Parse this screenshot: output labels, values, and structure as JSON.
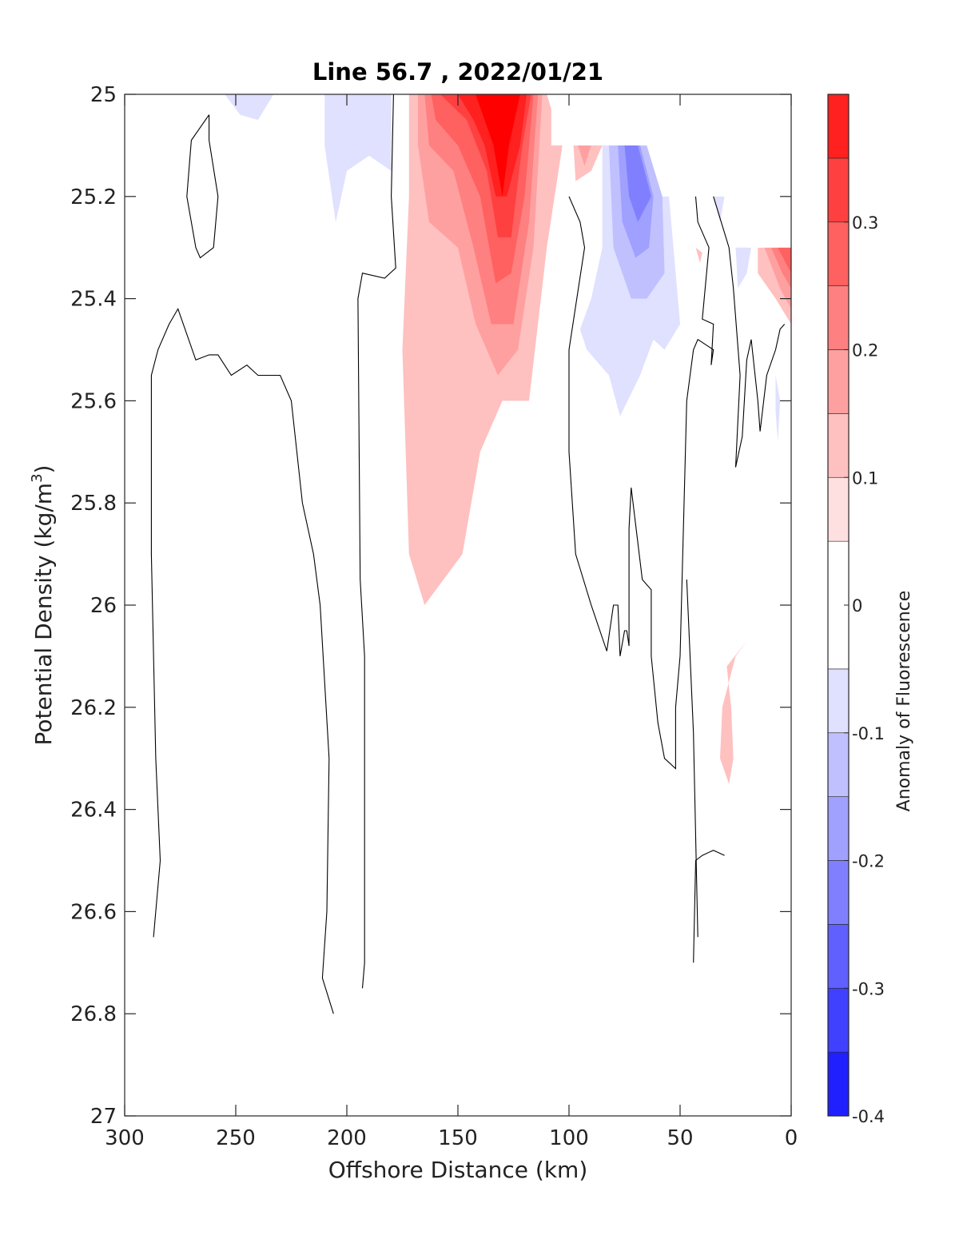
{
  "chart_data": {
    "type": "heatmap",
    "subtype": "filled-contour section",
    "title": "Line 56.7 , 2022/01/21",
    "xlabel": "Offshore Distance (km)",
    "ylabel_prefix": "Potential Density (kg/m",
    "ylabel_superscript": "3",
    "ylabel_suffix": ")",
    "xlim": [
      300,
      0
    ],
    "ylim": [
      25,
      27
    ],
    "x_reversed": true,
    "y_reversed": true,
    "xticks": [
      300,
      250,
      200,
      150,
      100,
      50,
      0
    ],
    "xtick_labels": [
      "300",
      "250",
      "200",
      "150",
      "100",
      "50",
      "0"
    ],
    "yticks": [
      25,
      25.2,
      25.4,
      25.6,
      25.8,
      26,
      26.2,
      26.4,
      26.6,
      26.8,
      27
    ],
    "ytick_labels": [
      "25",
      "25.2",
      "25.4",
      "25.6",
      "25.8",
      "26",
      "26.2",
      "26.4",
      "26.6",
      "26.8",
      "27"
    ],
    "colorbar": {
      "label": "Anomaly of Fluorescence",
      "min": -0.4,
      "max": 0.4,
      "levels": [
        -0.4,
        -0.35,
        -0.3,
        -0.25,
        -0.2,
        -0.15,
        -0.1,
        -0.05,
        0.05,
        0.1,
        0.15,
        0.2,
        0.25,
        0.3,
        0.35,
        0.4
      ],
      "colors": [
        "#0000ff",
        "#2020ff",
        "#4040ff",
        "#6060ff",
        "#8080ff",
        "#a0a0ff",
        "#c0c0ff",
        "#e0e0ff",
        "#ffffff",
        "#ffe0e0",
        "#ffc0c0",
        "#ffa0a0",
        "#ff8080",
        "#ff6060",
        "#ff4040",
        "#ff2020",
        "#ff0000"
      ],
      "ticks": [
        -0.4,
        -0.3,
        -0.2,
        -0.1,
        0,
        0.1,
        0.2,
        0.3
      ],
      "tick_labels": [
        "-0.4",
        "-0.3",
        "-0.2",
        "-0.1",
        "0",
        "0.1",
        "0.2",
        "0.3"
      ]
    },
    "filled_regions": [
      {
        "level": 0.1,
        "points": [
          [
            172,
            25.0
          ],
          [
            110,
            25.0
          ],
          [
            103,
            25.1
          ],
          [
            110,
            25.3
          ],
          [
            118,
            25.6
          ],
          [
            130,
            25.6
          ],
          [
            140,
            25.7
          ],
          [
            148,
            25.9
          ],
          [
            165,
            26.0
          ],
          [
            172,
            25.9
          ],
          [
            175,
            25.5
          ],
          [
            172,
            25.2
          ]
        ]
      },
      {
        "level": 0.15,
        "points": [
          [
            168,
            25.0
          ],
          [
            112,
            25.0
          ],
          [
            116,
            25.3
          ],
          [
            123,
            25.5
          ],
          [
            132,
            25.55
          ],
          [
            142,
            25.45
          ],
          [
            150,
            25.3
          ],
          [
            163,
            25.25
          ],
          [
            168,
            25.1
          ]
        ]
      },
      {
        "level": 0.2,
        "points": [
          [
            165,
            25.0
          ],
          [
            114,
            25.0
          ],
          [
            118,
            25.25
          ],
          [
            125,
            25.45
          ],
          [
            135,
            25.45
          ],
          [
            143,
            25.3
          ],
          [
            152,
            25.15
          ],
          [
            163,
            25.1
          ]
        ]
      },
      {
        "level": 0.25,
        "points": [
          [
            162,
            25.0
          ],
          [
            116,
            25.0
          ],
          [
            120,
            25.2
          ],
          [
            126,
            25.35
          ],
          [
            133,
            25.37
          ],
          [
            140,
            25.2
          ],
          [
            150,
            25.1
          ],
          [
            160,
            25.05
          ]
        ]
      },
      {
        "level": 0.3,
        "points": [
          [
            158,
            25.0
          ],
          [
            117,
            25.0
          ],
          [
            121,
            25.1
          ],
          [
            126,
            25.28
          ],
          [
            132,
            25.28
          ],
          [
            137,
            25.15
          ],
          [
            146,
            25.05
          ]
        ]
      },
      {
        "level": 0.35,
        "points": [
          [
            150,
            25.0
          ],
          [
            119,
            25.0
          ],
          [
            122,
            25.1
          ],
          [
            128,
            25.2
          ],
          [
            133,
            25.2
          ],
          [
            138,
            25.1
          ],
          [
            143,
            25.05
          ]
        ]
      },
      {
        "level": 0.4,
        "points": [
          [
            142,
            25.0
          ],
          [
            122,
            25.0
          ],
          [
            127,
            25.1
          ],
          [
            130,
            25.2
          ],
          [
            134,
            25.1
          ]
        ]
      },
      {
        "level": 0.1,
        "points": [
          [
            98,
            25.1
          ],
          [
            85,
            25.1
          ],
          [
            90,
            25.15
          ],
          [
            97,
            25.17
          ]
        ]
      },
      {
        "level": 0.15,
        "points": [
          [
            96,
            25.1
          ],
          [
            90,
            25.1
          ],
          [
            93,
            25.14
          ]
        ]
      },
      {
        "level": 0.1,
        "points": [
          [
            15,
            25.3
          ],
          [
            0,
            25.3
          ],
          [
            0,
            25.45
          ],
          [
            7,
            25.4
          ],
          [
            15,
            25.35
          ]
        ]
      },
      {
        "level": 0.15,
        "points": [
          [
            12,
            25.3
          ],
          [
            0,
            25.3
          ],
          [
            0,
            25.42
          ],
          [
            5,
            25.38
          ]
        ]
      },
      {
        "level": 0.2,
        "points": [
          [
            9,
            25.3
          ],
          [
            0,
            25.3
          ],
          [
            0,
            25.38
          ],
          [
            4,
            25.35
          ]
        ]
      },
      {
        "level": 0.25,
        "points": [
          [
            6,
            25.3
          ],
          [
            0,
            25.3
          ],
          [
            0,
            25.35
          ]
        ]
      },
      {
        "level": 0.1,
        "points": [
          [
            20,
            26.07
          ],
          [
            25,
            26.1
          ],
          [
            31,
            26.2
          ],
          [
            32,
            26.3
          ],
          [
            28,
            26.35
          ],
          [
            26,
            26.3
          ],
          [
            27,
            26.2
          ],
          [
            29,
            26.12
          ]
        ]
      },
      {
        "level": 0.1,
        "points": [
          [
            43,
            25.3
          ],
          [
            40,
            25.31
          ],
          [
            41,
            25.33
          ]
        ]
      },
      {
        "level": -0.1,
        "points": [
          [
            85,
            25.1
          ],
          [
            60,
            25.1
          ],
          [
            55,
            25.2
          ],
          [
            50,
            25.45
          ],
          [
            57,
            25.5
          ],
          [
            62,
            25.48
          ],
          [
            68,
            25.55
          ],
          [
            77,
            25.63
          ],
          [
            82,
            25.55
          ],
          [
            92,
            25.5
          ],
          [
            95,
            25.46
          ],
          [
            90,
            25.4
          ],
          [
            85,
            25.3
          ]
        ]
      },
      {
        "level": -0.15,
        "points": [
          [
            82,
            25.1
          ],
          [
            65,
            25.1
          ],
          [
            58,
            25.2
          ],
          [
            57,
            25.35
          ],
          [
            65,
            25.4
          ],
          [
            72,
            25.4
          ],
          [
            80,
            25.3
          ]
        ]
      },
      {
        "level": -0.2,
        "points": [
          [
            78,
            25.1
          ],
          [
            68,
            25.1
          ],
          [
            62,
            25.2
          ],
          [
            64,
            25.3
          ],
          [
            70,
            25.32
          ],
          [
            76,
            25.25
          ]
        ]
      },
      {
        "level": -0.25,
        "points": [
          [
            75,
            25.1
          ],
          [
            69,
            25.1
          ],
          [
            63,
            25.2
          ],
          [
            69,
            25.25
          ],
          [
            73,
            25.2
          ]
        ]
      },
      {
        "level": -0.1,
        "points": [
          [
            255,
            25.0
          ],
          [
            233,
            25.0
          ],
          [
            240,
            25.05
          ],
          [
            248,
            25.04
          ]
        ]
      },
      {
        "level": -0.1,
        "points": [
          [
            210,
            25.0
          ],
          [
            180,
            25.0
          ],
          [
            180,
            25.15
          ],
          [
            190,
            25.12
          ],
          [
            200,
            25.15
          ],
          [
            205,
            25.25
          ],
          [
            210,
            25.1
          ]
        ]
      },
      {
        "level": -0.1,
        "points": [
          [
            35,
            25.2
          ],
          [
            30,
            25.2
          ],
          [
            32,
            25.25
          ]
        ]
      },
      {
        "level": -0.1,
        "points": [
          [
            25,
            25.3
          ],
          [
            18,
            25.3
          ],
          [
            20,
            25.35
          ],
          [
            24,
            25.38
          ]
        ]
      },
      {
        "level": -0.1,
        "points": [
          [
            7,
            25.55
          ],
          [
            5,
            25.6
          ],
          [
            6,
            25.68
          ],
          [
            7,
            25.62
          ]
        ]
      }
    ],
    "masked_regions": [
      {
        "points": [
          [
            108,
            25.0
          ],
          [
            0,
            25.0
          ],
          [
            0,
            25.3
          ],
          [
            20,
            25.3
          ],
          [
            28,
            25.2
          ],
          [
            58,
            25.2
          ],
          [
            65,
            25.1
          ],
          [
            108,
            25.1
          ]
        ]
      }
    ],
    "zero_contours": [
      [
        [
          262,
          25.04
        ],
        [
          270,
          25.09
        ],
        [
          272,
          25.2
        ],
        [
          268,
          25.3
        ],
        [
          266,
          25.32
        ],
        [
          260,
          25.3
        ],
        [
          258,
          25.2
        ],
        [
          262,
          25.09
        ],
        [
          262,
          25.04
        ]
      ],
      [
        [
          287,
          26.65
        ],
        [
          284,
          26.5
        ],
        [
          286,
          26.3
        ],
        [
          288,
          25.9
        ],
        [
          288,
          25.7
        ],
        [
          288,
          25.55
        ],
        [
          285,
          25.5
        ],
        [
          280,
          25.45
        ],
        [
          276,
          25.42
        ],
        [
          268,
          25.52
        ],
        [
          262,
          25.51
        ],
        [
          258,
          25.51
        ],
        [
          252,
          25.55
        ],
        [
          245,
          25.53
        ],
        [
          240,
          25.55
        ],
        [
          230,
          25.55
        ],
        [
          225,
          25.6
        ],
        [
          220,
          25.8
        ],
        [
          215,
          25.9
        ],
        [
          212,
          26.0
        ],
        [
          208,
          26.3
        ],
        [
          209,
          26.6
        ],
        [
          211,
          26.73
        ],
        [
          206,
          26.8
        ]
      ],
      [
        [
          193,
          26.75
        ],
        [
          192,
          26.7
        ],
        [
          192,
          26.1
        ],
        [
          194,
          25.95
        ],
        [
          195,
          25.4
        ],
        [
          193,
          25.35
        ],
        [
          183,
          25.36
        ],
        [
          178,
          25.34
        ],
        [
          180,
          25.2
        ],
        [
          179,
          25.0
        ]
      ],
      [
        [
          100,
          25.2
        ],
        [
          95,
          25.25
        ],
        [
          93,
          25.3
        ],
        [
          100,
          25.5
        ],
        [
          100,
          25.7
        ],
        [
          97,
          25.9
        ],
        [
          90,
          26.0
        ],
        [
          83,
          26.09
        ],
        [
          80,
          26.0
        ],
        [
          78,
          26.0
        ],
        [
          77,
          26.1
        ],
        [
          75,
          26.05
        ],
        [
          74,
          26.05
        ],
        [
          73,
          26.08
        ],
        [
          73,
          25.85
        ],
        [
          72,
          25.77
        ],
        [
          67,
          25.95
        ],
        [
          63,
          25.97
        ],
        [
          63,
          26.1
        ],
        [
          60,
          26.23
        ],
        [
          57,
          26.3
        ],
        [
          52,
          26.32
        ],
        [
          52,
          26.2
        ],
        [
          50,
          26.1
        ],
        [
          47,
          25.6
        ],
        [
          44,
          25.5
        ],
        [
          42,
          25.48
        ],
        [
          35,
          25.5
        ],
        [
          36,
          25.53
        ],
        [
          35,
          25.45
        ],
        [
          40,
          25.44
        ],
        [
          37,
          25.3
        ],
        [
          42,
          25.25
        ],
        [
          43,
          25.2
        ]
      ],
      [
        [
          35,
          25.2
        ],
        [
          28,
          25.3
        ],
        [
          26,
          25.38
        ],
        [
          23,
          25.55
        ],
        [
          25,
          25.73
        ],
        [
          22,
          25.67
        ],
        [
          20,
          25.52
        ],
        [
          18,
          25.48
        ],
        [
          15,
          25.6
        ],
        [
          14,
          25.66
        ],
        [
          11,
          25.55
        ],
        [
          7,
          25.5
        ],
        [
          5,
          25.46
        ],
        [
          3,
          25.45
        ]
      ],
      [
        [
          47,
          25.95
        ],
        [
          44,
          26.25
        ],
        [
          42,
          26.65
        ]
      ],
      [
        [
          44,
          26.7
        ],
        [
          43,
          26.5
        ],
        [
          40,
          26.49
        ],
        [
          35,
          26.48
        ],
        [
          30,
          26.49
        ]
      ]
    ]
  }
}
